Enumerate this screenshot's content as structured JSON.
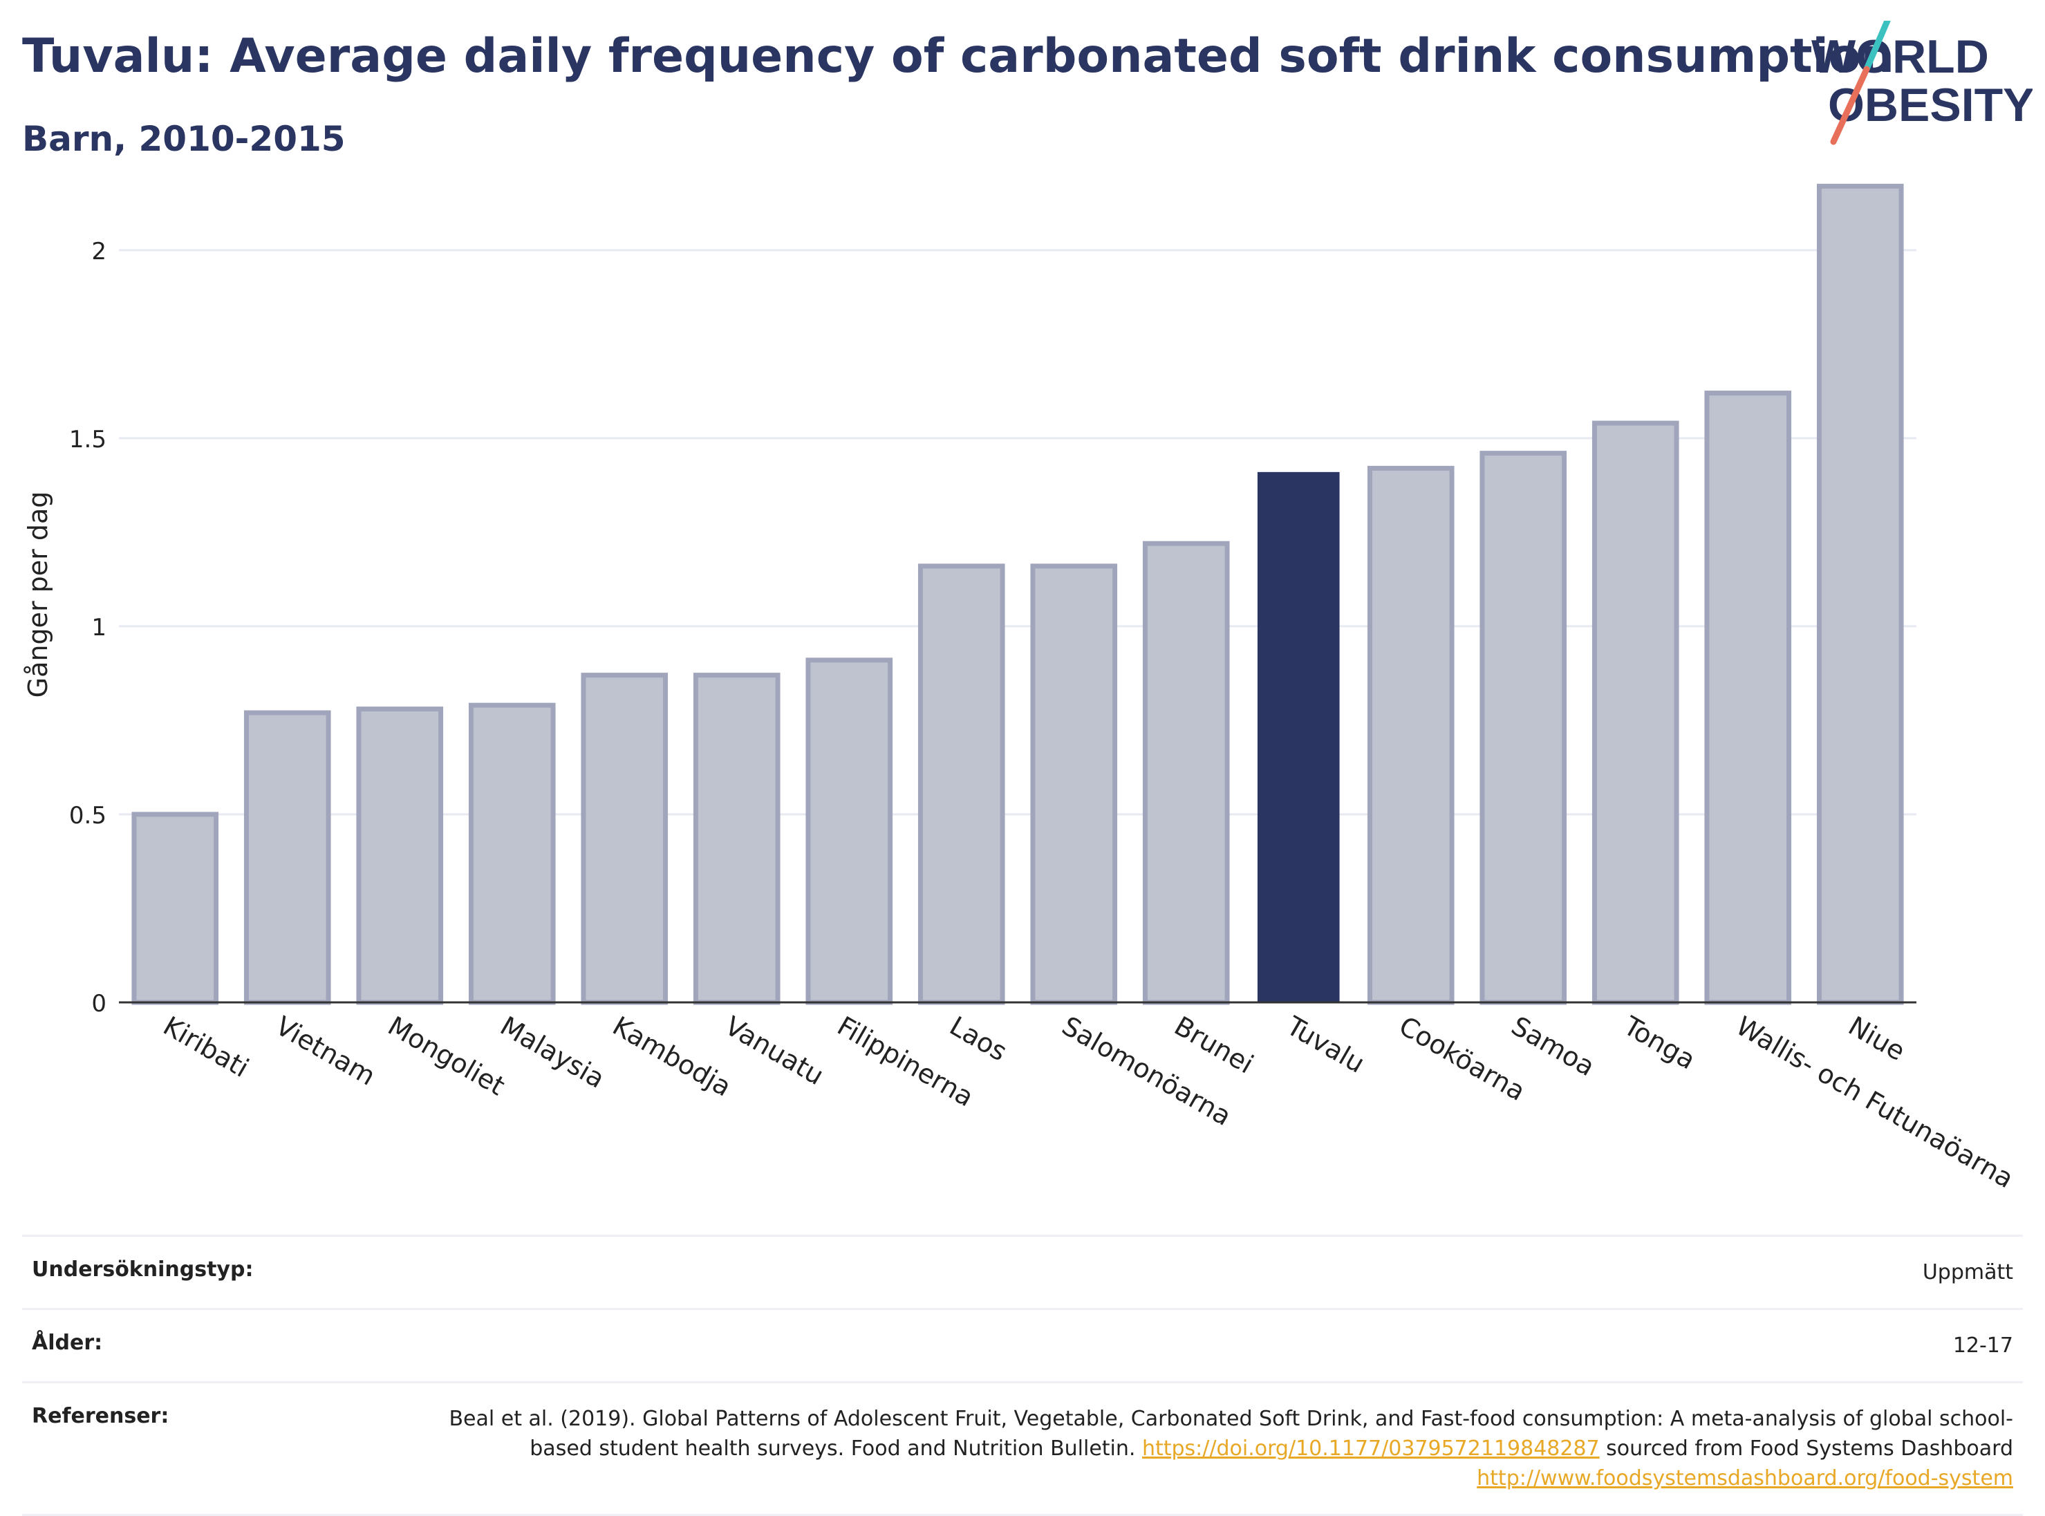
{
  "header": {
    "title": "Tuvalu: Average daily frequency of carbonated soft drink consumption",
    "subtitle": "Barn, 2010-2015"
  },
  "logo": {
    "line1": "WORLD",
    "line2": "OBESITY"
  },
  "colors": {
    "highlight": "#2a3561",
    "bar_fill": "#bfc3d0",
    "bar_stroke": "#a0a5bb",
    "grid": "#e8eaf2",
    "logo_teal": "#3cc1c1",
    "logo_coral": "#e8705a",
    "link": "#e8a826"
  },
  "chart_data": {
    "type": "bar",
    "ylabel": "Gånger per dag",
    "categories": [
      "Kiribati",
      "Vietnam",
      "Mongoliet",
      "Malaysia",
      "Kambodja",
      "Vanuatu",
      "Filippinerna",
      "Laos",
      "Salomonöarna",
      "Brunei",
      "Tuvalu",
      "Cooköarna",
      "Samoa",
      "Tonga",
      "Wallis- och Futunaöarna",
      "Niue"
    ],
    "values": [
      0.5,
      0.77,
      0.78,
      0.79,
      0.87,
      0.87,
      0.91,
      1.16,
      1.16,
      1.22,
      1.41,
      1.42,
      1.46,
      1.54,
      1.62,
      2.17
    ],
    "highlight": "Tuvalu",
    "ylim": [
      0,
      2.2
    ],
    "yticks": [
      0,
      0.5,
      1,
      1.5,
      2
    ],
    "ytick_labels": [
      "0",
      "0.5",
      "1",
      "1.5",
      "2"
    ],
    "grid": true
  },
  "info": {
    "survey_label": "Undersökningstyp:",
    "survey_value": "Uppmätt",
    "age_label": "Ålder:",
    "age_value": "12-17",
    "ref_label": "Referenser:",
    "ref_text_1": "Beal et al. (2019). Global Patterns of Adolescent Fruit, Vegetable, Carbonated Soft Drink, and Fast-food consumption: A meta-analysis of global school-based student health surveys. Food and Nutrition Bulletin. ",
    "ref_link_1": "https://doi.org/10.1177/0379572119848287",
    "ref_text_2": " sourced from Food Systems Dashboard ",
    "ref_link_2": "http://www.foodsystemsdashboard.org/food-system"
  }
}
